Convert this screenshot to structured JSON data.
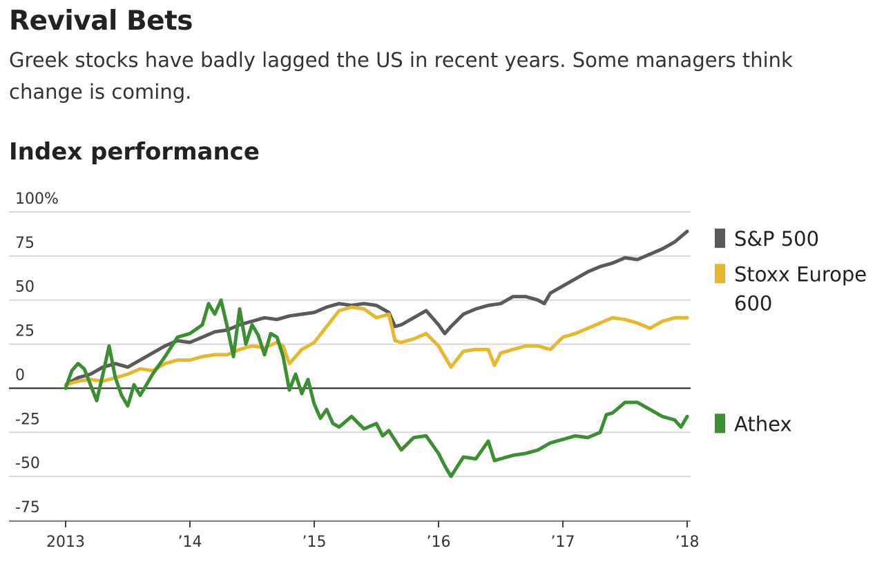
{
  "header": {
    "title": "Revival Bets",
    "subtitle": "Greek stocks have badly lagged the US in recent years. Some managers think change is coming.",
    "section": "Index performance"
  },
  "chart_data": {
    "type": "line",
    "title": "Index performance",
    "xlabel": "",
    "ylabel": "",
    "ylim": [
      -75,
      100
    ],
    "xlim": [
      2013.0,
      2018.0
    ],
    "grid": true,
    "legend_position": "right",
    "x_ticks": [
      {
        "value": 2013,
        "label": "2013"
      },
      {
        "value": 2014,
        "label": "’14"
      },
      {
        "value": 2015,
        "label": "’15"
      },
      {
        "value": 2016,
        "label": "’16"
      },
      {
        "value": 2017,
        "label": "’17"
      },
      {
        "value": 2018,
        "label": "’18"
      }
    ],
    "y_ticks": [
      {
        "value": 100,
        "label": "100%"
      },
      {
        "value": 75,
        "label": "75"
      },
      {
        "value": 50,
        "label": "50"
      },
      {
        "value": 25,
        "label": "25"
      },
      {
        "value": 0,
        "label": "0"
      },
      {
        "value": -25,
        "label": "-25"
      },
      {
        "value": -50,
        "label": "-50"
      },
      {
        "value": -75,
        "label": "-75"
      }
    ],
    "series": [
      {
        "name": "S&P 500",
        "color": "#5a5a5a",
        "legend_lines": [
          "S&P 500"
        ],
        "x": [
          2013.0,
          2013.1,
          2013.2,
          2013.3,
          2013.4,
          2013.5,
          2013.6,
          2013.7,
          2013.8,
          2013.9,
          2014.0,
          2014.1,
          2014.2,
          2014.3,
          2014.4,
          2014.5,
          2014.6,
          2014.7,
          2014.8,
          2014.9,
          2015.0,
          2015.1,
          2015.2,
          2015.3,
          2015.4,
          2015.5,
          2015.6,
          2015.65,
          2015.7,
          2015.8,
          2015.9,
          2016.0,
          2016.05,
          2016.1,
          2016.2,
          2016.3,
          2016.4,
          2016.5,
          2016.6,
          2016.7,
          2016.8,
          2016.85,
          2016.9,
          2017.0,
          2017.1,
          2017.2,
          2017.3,
          2017.4,
          2017.5,
          2017.6,
          2017.7,
          2017.8,
          2017.9,
          2018.0
        ],
        "values": [
          2,
          6,
          8,
          12,
          14,
          12,
          16,
          20,
          24,
          27,
          26,
          29,
          32,
          33,
          36,
          38,
          40,
          39,
          41,
          42,
          43,
          46,
          48,
          47,
          48,
          47,
          43,
          35,
          36,
          40,
          44,
          36,
          31,
          35,
          42,
          45,
          47,
          48,
          52,
          52,
          50,
          48,
          54,
          58,
          62,
          66,
          69,
          71,
          74,
          73,
          76,
          79,
          83,
          89
        ]
      },
      {
        "name": "Stoxx Europe 600",
        "color": "#e6b82e",
        "legend_lines": [
          "Stoxx Europe",
          "600"
        ],
        "x": [
          2013.0,
          2013.1,
          2013.2,
          2013.3,
          2013.4,
          2013.5,
          2013.6,
          2013.7,
          2013.8,
          2013.9,
          2014.0,
          2014.1,
          2014.2,
          2014.3,
          2014.4,
          2014.5,
          2014.6,
          2014.7,
          2014.75,
          2014.8,
          2014.9,
          2015.0,
          2015.1,
          2015.2,
          2015.3,
          2015.4,
          2015.5,
          2015.6,
          2015.65,
          2015.7,
          2015.8,
          2015.9,
          2016.0,
          2016.1,
          2016.2,
          2016.3,
          2016.4,
          2016.45,
          2016.5,
          2016.6,
          2016.7,
          2016.8,
          2016.9,
          2017.0,
          2017.1,
          2017.2,
          2017.3,
          2017.4,
          2017.5,
          2017.6,
          2017.7,
          2017.8,
          2017.9,
          2018.0
        ],
        "values": [
          2,
          4,
          5,
          4,
          6,
          8,
          11,
          10,
          14,
          16,
          16,
          18,
          19,
          19,
          22,
          24,
          23,
          26,
          24,
          14,
          22,
          26,
          35,
          44,
          46,
          45,
          40,
          42,
          27,
          26,
          28,
          31,
          24,
          12,
          21,
          22,
          22,
          13,
          20,
          22,
          24,
          24,
          22,
          29,
          31,
          34,
          37,
          40,
          39,
          37,
          34,
          38,
          40,
          40
        ]
      },
      {
        "name": "Athex",
        "color": "#3d8d34",
        "legend_lines": [
          "Athex"
        ],
        "x": [
          2013.0,
          2013.05,
          2013.1,
          2013.15,
          2013.2,
          2013.25,
          2013.3,
          2013.35,
          2013.4,
          2013.45,
          2013.5,
          2013.55,
          2013.6,
          2013.7,
          2013.8,
          2013.9,
          2014.0,
          2014.1,
          2014.15,
          2014.2,
          2014.25,
          2014.3,
          2014.35,
          2014.4,
          2014.45,
          2014.5,
          2014.55,
          2014.6,
          2014.65,
          2014.7,
          2014.75,
          2014.8,
          2014.85,
          2014.9,
          2014.95,
          2015.0,
          2015.05,
          2015.1,
          2015.15,
          2015.2,
          2015.3,
          2015.4,
          2015.5,
          2015.55,
          2015.6,
          2015.7,
          2015.8,
          2015.9,
          2016.0,
          2016.05,
          2016.1,
          2016.2,
          2016.3,
          2016.4,
          2016.45,
          2016.5,
          2016.6,
          2016.7,
          2016.8,
          2016.9,
          2017.0,
          2017.1,
          2017.2,
          2017.3,
          2017.35,
          2017.4,
          2017.5,
          2017.6,
          2017.7,
          2017.75,
          2017.8,
          2017.9,
          2017.95,
          2018.0
        ],
        "values": [
          0,
          10,
          14,
          11,
          2,
          -7,
          8,
          24,
          6,
          -4,
          -10,
          2,
          -4,
          8,
          18,
          29,
          31,
          36,
          48,
          42,
          50,
          35,
          18,
          45,
          25,
          36,
          30,
          19,
          31,
          29,
          18,
          -1,
          8,
          -3,
          5,
          -9,
          -17,
          -12,
          -20,
          -22,
          -16,
          -23,
          -20,
          -27,
          -24,
          -35,
          -28,
          -27,
          -37,
          -44,
          -50,
          -39,
          -40,
          -30,
          -41,
          -40,
          -38,
          -37,
          -35,
          -31,
          -29,
          -27,
          -28,
          -25,
          -15,
          -14,
          -8,
          -8,
          -12,
          -14,
          -16,
          -18,
          -22,
          -16
        ]
      }
    ]
  }
}
